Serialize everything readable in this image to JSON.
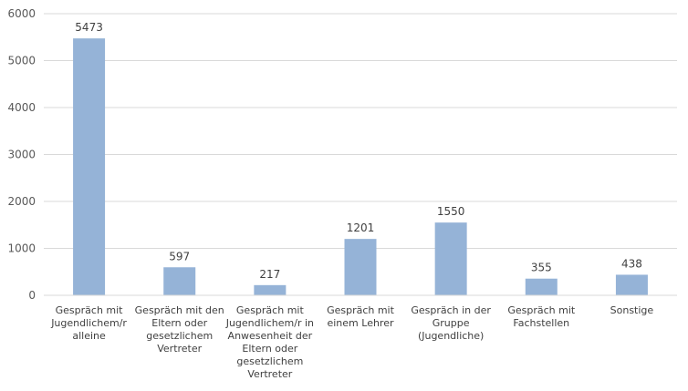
{
  "chart_data": {
    "type": "bar",
    "categories": [
      [
        "Gespräch mit",
        "Jugendlichem/r",
        "alleine"
      ],
      [
        "Gespräch mit den",
        "Eltern oder",
        "gesetzlichem",
        "Vertreter"
      ],
      [
        "Gespräch mit",
        "Jugendlichem/r in",
        "Anwesenheit der",
        "Eltern oder",
        "gesetzlichem",
        "Vertreter"
      ],
      [
        "Gespräch mit",
        "einem Lehrer"
      ],
      [
        "Gespräch in der",
        "Gruppe",
        "(Jugendliche)"
      ],
      [
        "Gespräch mit",
        "Fachstellen"
      ],
      [
        "Sonstige"
      ]
    ],
    "values": [
      5473,
      597,
      217,
      1201,
      1550,
      355,
      438
    ],
    "data_labels": [
      "5473",
      "597",
      "217",
      "1201",
      "1550",
      "355",
      "438"
    ],
    "yticks": [
      0,
      1000,
      2000,
      3000,
      4000,
      5000,
      6000
    ],
    "ytick_labels": [
      "0",
      "1000",
      "2000",
      "3000",
      "4000",
      "5000",
      "6000"
    ],
    "ylim": [
      0,
      6000
    ],
    "grid": true,
    "legend": "none",
    "bar_color": "#95b3d7"
  }
}
